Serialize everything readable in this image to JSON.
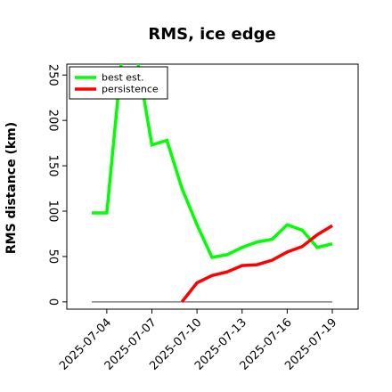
{
  "chart_data": {
    "type": "line",
    "title": "RMS, ice edge",
    "xlabel": "",
    "ylabel": "RMS distance (km)",
    "x": [
      "2025-07-03",
      "2025-07-04",
      "2025-07-05",
      "2025-07-06",
      "2025-07-07",
      "2025-07-08",
      "2025-07-09",
      "2025-07-10",
      "2025-07-11",
      "2025-07-12",
      "2025-07-13",
      "2025-07-14",
      "2025-07-15",
      "2025-07-16",
      "2025-07-17",
      "2025-07-18",
      "2025-07-19"
    ],
    "x_tick_labels": [
      "2025-07-04",
      "2025-07-07",
      "2025-07-10",
      "2025-07-13",
      "2025-07-16",
      "2025-07-19"
    ],
    "ylim": [
      -8,
      262
    ],
    "y_ticks": [
      0,
      50,
      100,
      150,
      200,
      250
    ],
    "grid": false,
    "legend_position": "top-left",
    "series": [
      {
        "name": "best est.",
        "color": "#00ff00",
        "values": [
          98,
          98,
          270,
          270,
          173,
          178,
          125,
          85,
          49,
          52,
          60,
          66,
          69,
          85,
          79,
          60,
          64
        ]
      },
      {
        "name": "persistence",
        "color": "#ff0000",
        "values": [
          null,
          null,
          null,
          null,
          null,
          null,
          0,
          21,
          29,
          33,
          40,
          41,
          46,
          55,
          61,
          74,
          84
        ]
      }
    ],
    "baseline": {
      "value": 0,
      "color": "#808080"
    }
  }
}
